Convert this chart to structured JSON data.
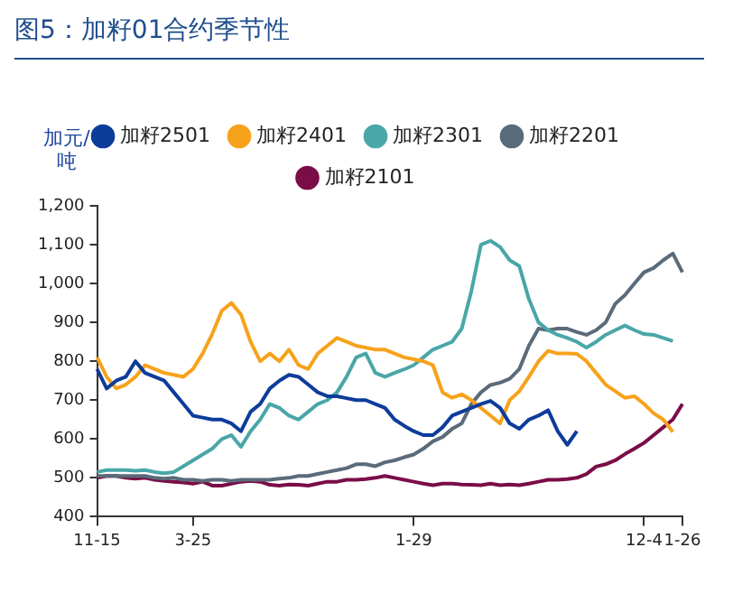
{
  "chart_data": {
    "type": "line",
    "title": "图5：加籽01合约季节性",
    "ylabel": "加元/吨",
    "categories": [
      "11-15",
      null,
      null,
      null,
      null,
      null,
      null,
      null,
      null,
      null,
      "3-25",
      null,
      null,
      null,
      null,
      null,
      null,
      null,
      null,
      null,
      null,
      null,
      null,
      null,
      null,
      null,
      null,
      null,
      null,
      null,
      null,
      null,
      null,
      "1-29",
      null,
      null,
      null,
      null,
      null,
      null,
      null,
      null,
      null,
      null,
      null,
      null,
      null,
      null,
      null,
      null,
      null,
      null,
      null,
      null,
      null,
      null,
      null,
      "12-4",
      null,
      null,
      null,
      "1-26"
    ],
    "series": [
      {
        "name": "加籽2501",
        "color": "#0d3c9a",
        "values": [
          780,
          730,
          750,
          760,
          800,
          770,
          760,
          750,
          720,
          690,
          660,
          655,
          650,
          650,
          640,
          620,
          670,
          690,
          730,
          750,
          765,
          760,
          740,
          720,
          710,
          710,
          705,
          700,
          700,
          690,
          680,
          650,
          634,
          620,
          610,
          610,
          630,
          660,
          670,
          680,
          690,
          698,
          680,
          640,
          626,
          650,
          660,
          674,
          620,
          585,
          620,
          null,
          null,
          null,
          null,
          null,
          null,
          null,
          null,
          null,
          null,
          null
        ]
      },
      {
        "name": "加籽2401",
        "color": "#f7a21b",
        "values": [
          810,
          760,
          730,
          740,
          760,
          790,
          780,
          770,
          765,
          760,
          780,
          820,
          870,
          930,
          950,
          920,
          850,
          800,
          820,
          800,
          830,
          790,
          780,
          820,
          840,
          860,
          850,
          840,
          835,
          830,
          830,
          820,
          810,
          805,
          800,
          790,
          720,
          706,
          715,
          700,
          680,
          660,
          640,
          700,
          723,
          760,
          800,
          827,
          820,
          820,
          819,
          800,
          770,
          740,
          723,
          706,
          710,
          690,
          666,
          650,
          618,
          null
        ]
      },
      {
        "name": "加籽2301",
        "color": "#4aa6a8",
        "values": [
          515,
          520,
          520,
          520,
          518,
          520,
          515,
          512,
          515,
          530,
          545,
          560,
          575,
          600,
          610,
          580,
          620,
          650,
          690,
          680,
          660,
          650,
          670,
          690,
          700,
          720,
          760,
          810,
          820,
          770,
          760,
          770,
          779,
          790,
          810,
          830,
          840,
          850,
          884,
          980,
          1100,
          1110,
          1094,
          1060,
          1045,
          960,
          900,
          880,
          868,
          860,
          850,
          835,
          850,
          868,
          880,
          892,
          880,
          870,
          868,
          860,
          852,
          null
        ]
      },
      {
        "name": "加籽2201",
        "color": "#5a6b7a",
        "values": [
          505,
          505,
          505,
          505,
          505,
          505,
          500,
          498,
          500,
          495,
          495,
          492,
          495,
          495,
          492,
          495,
          495,
          495,
          495,
          498,
          500,
          505,
          505,
          510,
          515,
          520,
          525,
          535,
          535,
          530,
          540,
          545,
          553,
          560,
          575,
          594,
          605,
          626,
          640,
          690,
          720,
          739,
          745,
          755,
          780,
          840,
          884,
          880,
          884,
          884,
          875,
          868,
          880,
          900,
          948,
          970,
          1000,
          1029,
          1040,
          1060,
          1077,
          1029
        ]
      },
      {
        "name": "加籽2101",
        "color": "#7a0d47",
        "values": [
          500,
          505,
          505,
          500,
          498,
          500,
          495,
          492,
          490,
          488,
          485,
          490,
          480,
          480,
          485,
          490,
          492,
          490,
          482,
          480,
          483,
          482,
          480,
          485,
          490,
          490,
          495,
          495,
          497,
          500,
          505,
          500,
          495,
          490,
          485,
          481,
          485,
          485,
          483,
          482,
          481,
          485,
          481,
          483,
          481,
          485,
          490,
          495,
          495,
          497,
          500,
          510,
          529,
          535,
          545,
          561,
          575,
          590,
          610,
          630,
          650,
          690
        ]
      }
    ],
    "ylim": [
      400,
      1200
    ],
    "yticks": [
      400,
      500,
      600,
      700,
      800,
      900,
      {
        "value": 1000,
        "label": "1,000"
      },
      {
        "value": 1100,
        "label": "1,100"
      },
      {
        "value": 1200,
        "label": "1,200"
      }
    ],
    "grid": false,
    "legend": "top",
    "marker": "none",
    "line_style": "solid"
  }
}
